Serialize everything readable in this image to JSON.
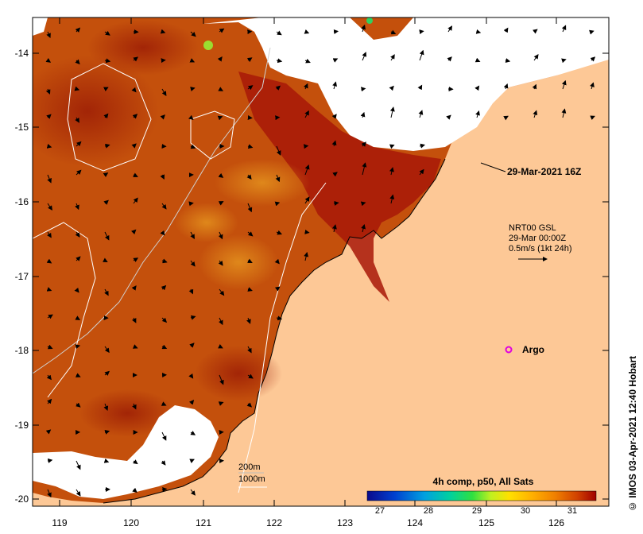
{
  "map": {
    "date_label": "29-Mar-2021 16Z",
    "currents": {
      "line1": "NRT00 GSL",
      "line2": "29-Mar 00:00Z",
      "line3": "0.5m/s (1kt 24h)"
    },
    "argo_label": "Argo",
    "depth_labels": {
      "d200": "200m",
      "d1000": "1000m"
    },
    "credit": "© IMOS 03-Apr-2021 12:40 Hobart",
    "lon_ticks": [
      "119",
      "120",
      "121",
      "122",
      "123",
      "124",
      "125",
      "126"
    ],
    "lat_ticks": [
      "-14",
      "-15",
      "-16",
      "-17",
      "-18",
      "-19",
      "-20"
    ],
    "colorbar": {
      "title": "4h comp, p50, All Sats",
      "ticks": [
        "27",
        "28",
        "29",
        "30",
        "31"
      ],
      "colors": [
        "#0a0a8c",
        "#0040d0",
        "#00a0e0",
        "#00d0a0",
        "#30e040",
        "#c0f020",
        "#ffe000",
        "#ffb000",
        "#f08000",
        "#d04000",
        "#a00000"
      ]
    },
    "colors": {
      "land": "#fdc896",
      "cloud": "#ffffff",
      "sst_warm": "#c04a0a",
      "argo": "#e000e0"
    }
  }
}
